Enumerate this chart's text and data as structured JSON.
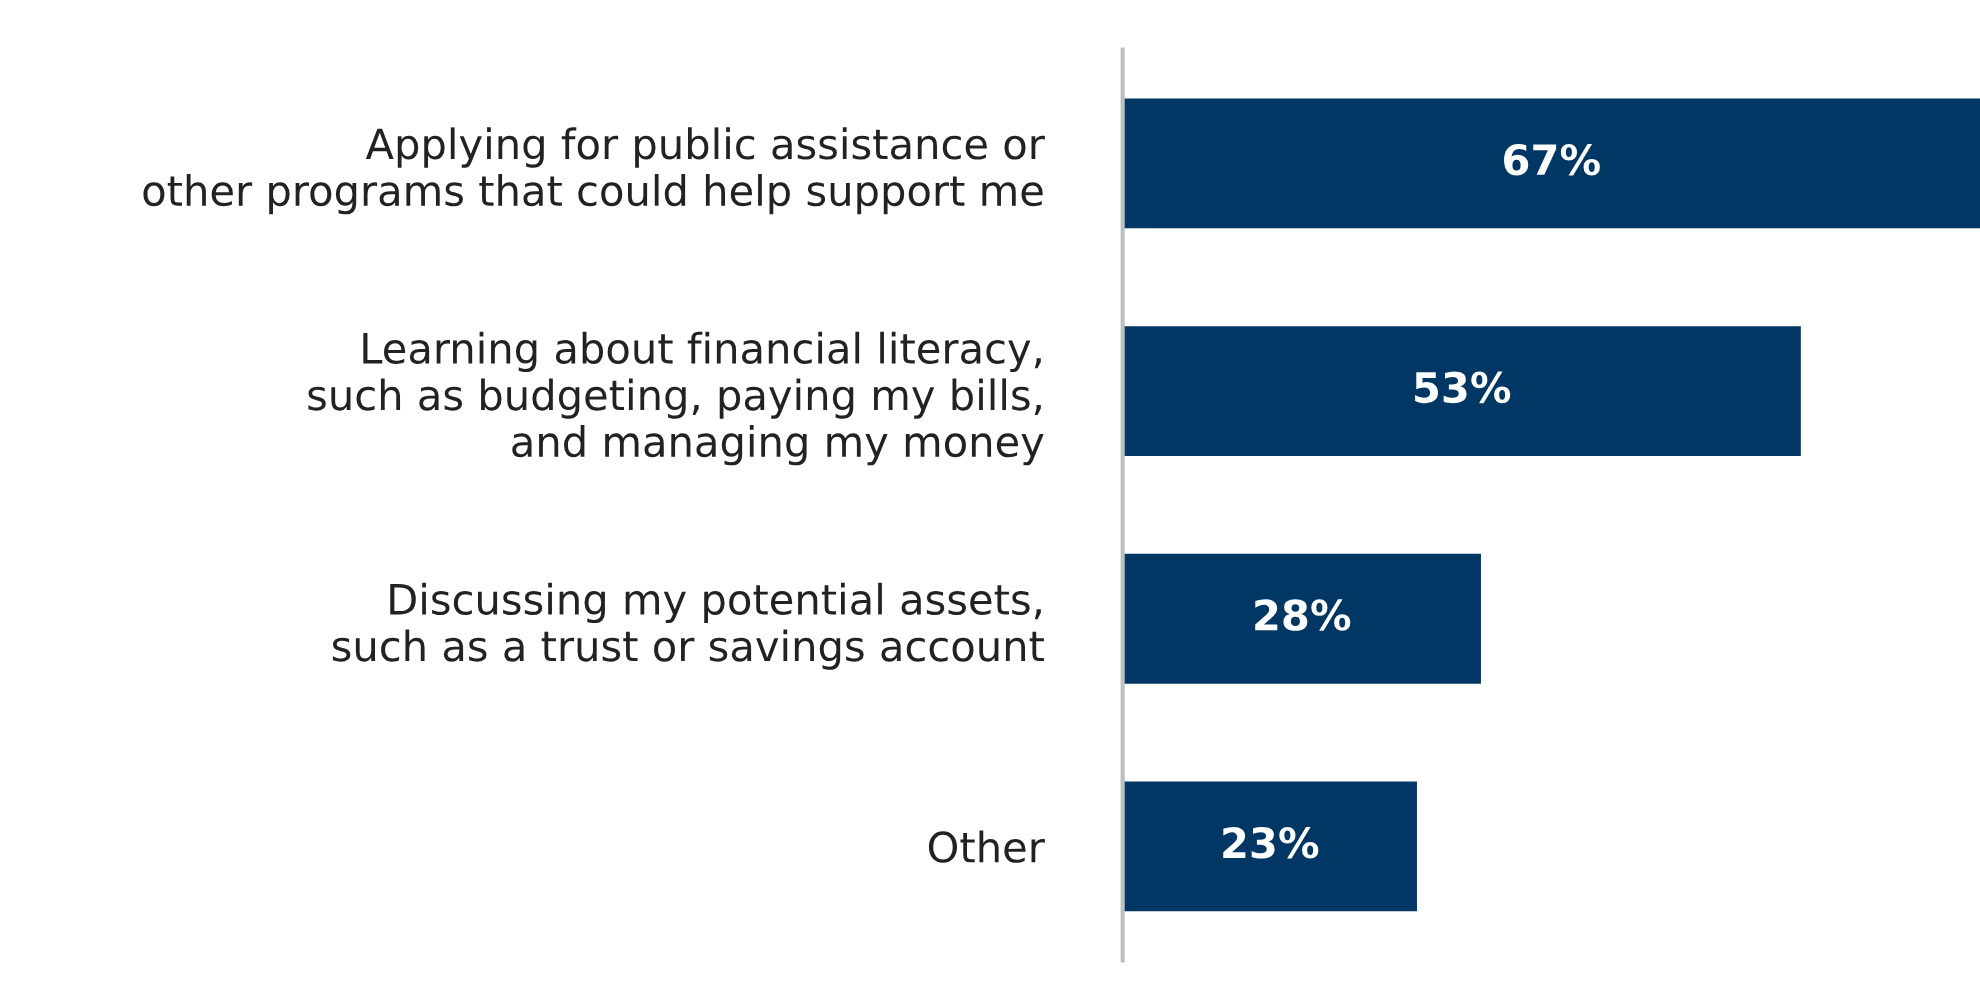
{
  "chart_data": {
    "type": "bar",
    "orientation": "horizontal",
    "categories": [
      "Applying for public assistance or\nother programs that could help support me",
      "Learning about financial literacy,\nsuch as budgeting, paying my bills,\nand managing my money",
      "Discussing my potential assets,\nsuch as a trust or savings account",
      "Other"
    ],
    "values": [
      67,
      53,
      28,
      23
    ],
    "value_labels": [
      "67%",
      "53%",
      "28%",
      "23%"
    ],
    "color": "#003764",
    "xlim": [
      0,
      67
    ],
    "tick_labels": "y"
  }
}
